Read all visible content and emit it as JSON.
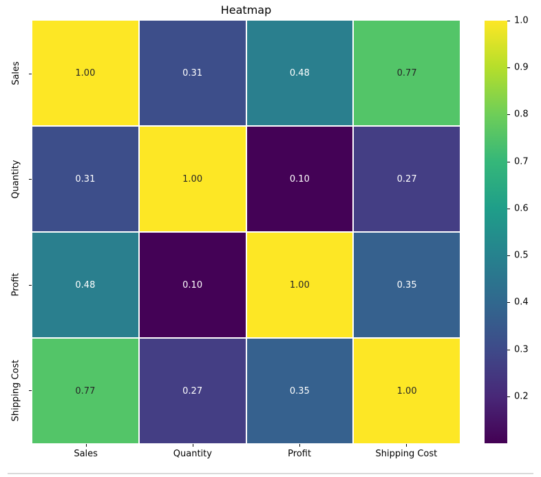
{
  "chart_data": {
    "type": "heatmap",
    "title": "Heatmap",
    "x_labels": [
      "Sales",
      "Quantity",
      "Profit",
      "Shipping Cost"
    ],
    "y_labels": [
      "Sales",
      "Quantity",
      "Profit",
      "Shipping Cost"
    ],
    "matrix": [
      [
        1.0,
        0.31,
        0.48,
        0.77
      ],
      [
        0.31,
        1.0,
        0.1,
        0.27
      ],
      [
        0.48,
        0.1,
        1.0,
        0.35
      ],
      [
        0.77,
        0.27,
        0.35,
        1.0
      ]
    ],
    "cell_labels": [
      [
        "1.00",
        "0.31",
        "0.48",
        "0.77"
      ],
      [
        "0.31",
        "1.00",
        "0.10",
        "0.27"
      ],
      [
        "0.48",
        "0.10",
        "1.00",
        "0.35"
      ],
      [
        "0.77",
        "0.27",
        "0.35",
        "1.00"
      ]
    ],
    "cell_colors": [
      [
        "#fde725",
        "#3d4e8a",
        "#2a7f8e",
        "#53c568"
      ],
      [
        "#3d4e8a",
        "#fde725",
        "#440256",
        "#443e84"
      ],
      [
        "#2a7f8e",
        "#440256",
        "#fde725",
        "#36618e"
      ],
      [
        "#53c568",
        "#443e84",
        "#36618e",
        "#fde725"
      ]
    ],
    "cell_text_colors": [
      [
        "#262626",
        "#ffffff",
        "#ffffff",
        "#262626"
      ],
      [
        "#ffffff",
        "#262626",
        "#ffffff",
        "#ffffff"
      ],
      [
        "#ffffff",
        "#ffffff",
        "#262626",
        "#ffffff"
      ],
      [
        "#262626",
        "#ffffff",
        "#ffffff",
        "#262626"
      ]
    ],
    "colormap": "viridis",
    "vmin": 0.1,
    "vmax": 1.0,
    "grid": false,
    "legend_position": "right-colorbar",
    "colorbar": {
      "ticks": [
        {
          "label": "1.0",
          "value": 1.0
        },
        {
          "label": "0.9",
          "value": 0.9
        },
        {
          "label": "0.8",
          "value": 0.8
        },
        {
          "label": "0.7",
          "value": 0.7
        },
        {
          "label": "0.6",
          "value": 0.6
        },
        {
          "label": "0.5",
          "value": 0.5
        },
        {
          "label": "0.4",
          "value": 0.4
        },
        {
          "label": "0.3",
          "value": 0.3
        },
        {
          "label": "0.2",
          "value": 0.2
        }
      ],
      "gradient_bottom_to_top": [
        "#440154",
        "#482878",
        "#3e4a89",
        "#31688e",
        "#26828e",
        "#1f9e89",
        "#35b779",
        "#6ece58",
        "#b5de2b",
        "#fde725"
      ]
    }
  },
  "colors": {
    "divider": "#d9d9d9",
    "tick": "#000000",
    "background": "#ffffff"
  }
}
